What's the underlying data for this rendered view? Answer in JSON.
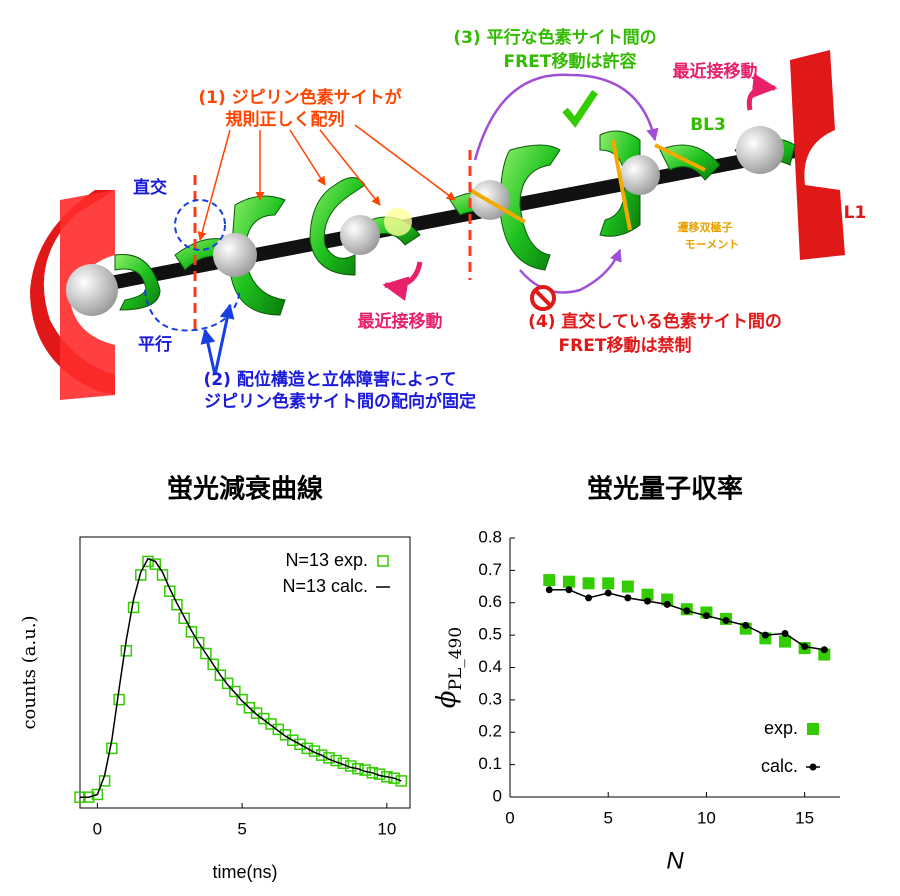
{
  "diagram": {
    "label_1": [
      "(1) ジピリン色素サイトが",
      "規則正しく配列"
    ],
    "orthogonal": "直交",
    "parallel": "平行",
    "label_2": [
      "(2) 配位構造と立体障害によって",
      "ジピリン色素サイト間の配向が固定"
    ],
    "nearest_left": "最近接移動",
    "nearest_right": "最近接移動",
    "label_3": [
      "(3) 平行な色素サイト間の",
      "FRET移動は許容"
    ],
    "bl3": "BL3",
    "l1": "L1",
    "dipole": [
      "遷移双極子",
      "モーメント"
    ],
    "label_4": [
      "(4) 直交している色素サイト間の",
      "FRET移動は禁制"
    ]
  },
  "chart_data": [
    {
      "type": "scatter",
      "title": "蛍光減衰曲線",
      "xlabel": "time(ns)",
      "ylabel": "counts (a.u.)",
      "xlim": [
        -0.6,
        10.8
      ],
      "xticks": [
        0,
        5,
        10
      ],
      "ylim": [
        0,
        1
      ],
      "legend": "upper right",
      "x": [
        -0.6,
        -0.3,
        0,
        0.25,
        0.5,
        0.75,
        1.0,
        1.25,
        1.5,
        1.75,
        2.0,
        2.25,
        2.5,
        2.75,
        3.0,
        3.25,
        3.5,
        3.75,
        4.0,
        4.25,
        4.5,
        4.75,
        5.0,
        5.25,
        5.5,
        5.75,
        6.0,
        6.25,
        6.5,
        6.75,
        7.0,
        7.25,
        7.5,
        7.75,
        8.0,
        8.25,
        8.5,
        8.75,
        9.0,
        9.25,
        9.5,
        9.75,
        10.0,
        10.25,
        10.5
      ],
      "series": [
        {
          "name": "N=13 exp.",
          "color": "#33cc00",
          "marker": "open-square",
          "line": false,
          "values": [
            0.04,
            0.04,
            0.05,
            0.1,
            0.22,
            0.4,
            0.58,
            0.74,
            0.86,
            0.91,
            0.9,
            0.86,
            0.8,
            0.75,
            0.7,
            0.65,
            0.61,
            0.57,
            0.53,
            0.49,
            0.46,
            0.43,
            0.4,
            0.37,
            0.35,
            0.33,
            0.31,
            0.29,
            0.27,
            0.25,
            0.235,
            0.22,
            0.21,
            0.195,
            0.185,
            0.175,
            0.165,
            0.155,
            0.145,
            0.14,
            0.13,
            0.125,
            0.115,
            0.11,
            0.1
          ]
        },
        {
          "name": "N=13 calc.",
          "color": "#000000",
          "marker": "none",
          "line": true,
          "values": [
            0.04,
            0.04,
            0.05,
            0.12,
            0.25,
            0.44,
            0.62,
            0.77,
            0.87,
            0.92,
            0.91,
            0.87,
            0.81,
            0.755,
            0.705,
            0.655,
            0.61,
            0.57,
            0.53,
            0.49,
            0.455,
            0.425,
            0.395,
            0.37,
            0.345,
            0.325,
            0.305,
            0.285,
            0.265,
            0.25,
            0.235,
            0.22,
            0.205,
            0.195,
            0.18,
            0.17,
            0.16,
            0.15,
            0.145,
            0.135,
            0.13,
            0.12,
            0.115,
            0.11,
            0.1
          ]
        }
      ]
    },
    {
      "type": "scatter",
      "title": "蛍光量子収率",
      "xlabel": "N",
      "ylabel": "ϕ",
      "ylabel_sub": "PL_490",
      "xlim": [
        0,
        16.8
      ],
      "xticks": [
        0,
        5,
        10,
        15
      ],
      "ylim": [
        0,
        0.8
      ],
      "yticks": [
        0,
        0.1,
        0.2,
        0.3,
        0.4,
        0.5,
        0.6,
        0.7,
        0.8
      ],
      "legend": "lower right",
      "x": [
        2,
        3,
        4,
        5,
        6,
        7,
        8,
        9,
        10,
        11,
        12,
        13,
        14,
        15,
        16
      ],
      "series": [
        {
          "name": "exp.",
          "color": "#33cc00",
          "marker": "filled-square",
          "line": false,
          "values": [
            0.67,
            0.665,
            0.66,
            0.66,
            0.65,
            0.625,
            0.61,
            0.58,
            0.57,
            0.55,
            0.52,
            0.49,
            0.48,
            0.46,
            0.44
          ]
        },
        {
          "name": "calc.",
          "color": "#000000",
          "marker": "dot",
          "line": true,
          "values": [
            0.64,
            0.64,
            0.615,
            0.63,
            0.615,
            0.605,
            0.595,
            0.575,
            0.56,
            0.545,
            0.53,
            0.5,
            0.505,
            0.465,
            0.455
          ]
        }
      ]
    }
  ]
}
